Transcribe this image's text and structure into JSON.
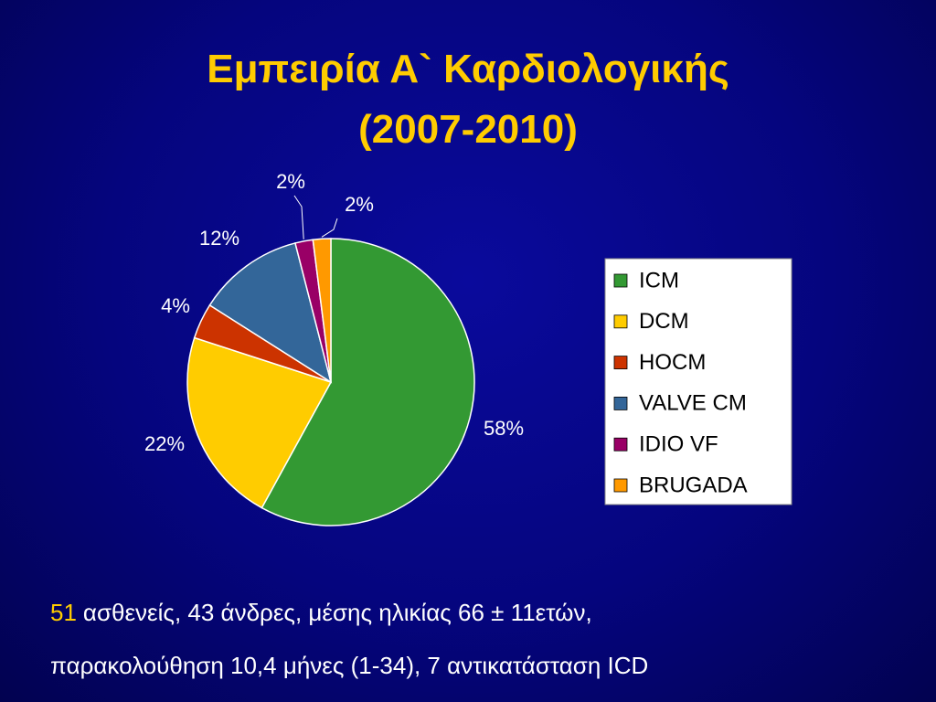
{
  "chart_data": {
    "type": "pie",
    "title": [
      "Εμπειρία Α` Καρδιολογικής",
      "(2007-2010)"
    ],
    "categories": [
      "ICM",
      "DCM",
      "HOCM",
      "VALVE CM",
      "IDIO VF",
      "BRUGADA"
    ],
    "values": [
      58,
      22,
      4,
      12,
      2,
      2
    ],
    "value_labels": [
      "58%",
      "22%",
      "4%",
      "12%",
      "2%",
      "2%"
    ],
    "colors": [
      "#339933",
      "#ffcc00",
      "#cc3300",
      "#336699",
      "#990066",
      "#ff9900"
    ],
    "legend": "right"
  },
  "footnote": {
    "count": "51",
    "line1": "ασθενείς, 43 άνδρες, μέσης ηλικίας 66 ± 11ετών,",
    "line2": "παρακολούθηση 10,4 μήνες (1-34), 7 αντικατάσταση ICD"
  }
}
